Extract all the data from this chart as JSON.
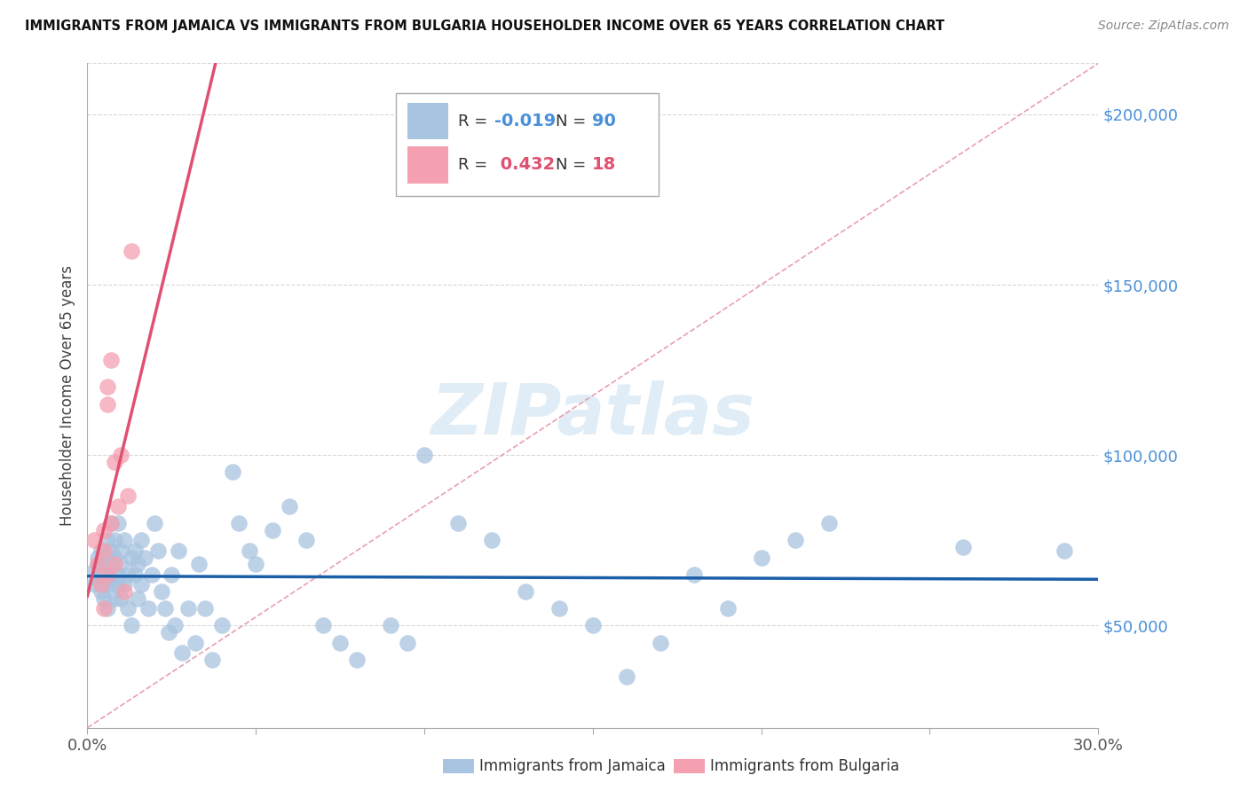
{
  "title": "IMMIGRANTS FROM JAMAICA VS IMMIGRANTS FROM BULGARIA HOUSEHOLDER INCOME OVER 65 YEARS CORRELATION CHART",
  "source": "Source: ZipAtlas.com",
  "ylabel": "Householder Income Over 65 years",
  "xlim": [
    0.0,
    0.3
  ],
  "ylim": [
    20000,
    215000
  ],
  "yticks_right": [
    50000,
    100000,
    150000,
    200000
  ],
  "ytick_labels_right": [
    "$50,000",
    "$100,000",
    "$150,000",
    "$200,000"
  ],
  "jamaica_color": "#a8c4e0",
  "bulgaria_color": "#f4a0b0",
  "jamaica_label": "Immigrants from Jamaica",
  "bulgaria_label": "Immigrants from Bulgaria",
  "jamaica_R": "-0.019",
  "jamaica_N": "90",
  "bulgaria_R": "0.432",
  "bulgaria_N": "18",
  "jamaica_line_color": "#1a5fa8",
  "bulgaria_line_color": "#e05070",
  "diagonal_line_color": "#e8a0b0",
  "watermark": "ZIPatlas",
  "background_color": "#ffffff",
  "grid_color": "#d8d8d8",
  "jamaica_x": [
    0.002,
    0.002,
    0.003,
    0.003,
    0.003,
    0.004,
    0.004,
    0.004,
    0.004,
    0.005,
    0.005,
    0.005,
    0.005,
    0.005,
    0.006,
    0.006,
    0.006,
    0.006,
    0.006,
    0.007,
    0.007,
    0.007,
    0.007,
    0.008,
    0.008,
    0.008,
    0.008,
    0.009,
    0.009,
    0.009,
    0.01,
    0.01,
    0.01,
    0.011,
    0.011,
    0.012,
    0.012,
    0.013,
    0.013,
    0.014,
    0.014,
    0.015,
    0.015,
    0.016,
    0.016,
    0.017,
    0.018,
    0.019,
    0.02,
    0.021,
    0.022,
    0.023,
    0.024,
    0.025,
    0.026,
    0.027,
    0.028,
    0.03,
    0.032,
    0.033,
    0.035,
    0.037,
    0.04,
    0.043,
    0.045,
    0.048,
    0.05,
    0.055,
    0.06,
    0.065,
    0.07,
    0.075,
    0.08,
    0.09,
    0.095,
    0.1,
    0.11,
    0.12,
    0.13,
    0.14,
    0.15,
    0.16,
    0.17,
    0.18,
    0.19,
    0.2,
    0.21,
    0.22,
    0.26,
    0.29
  ],
  "jamaica_y": [
    66000,
    62000,
    70000,
    64000,
    68000,
    72000,
    65000,
    60000,
    67000,
    66000,
    64000,
    68000,
    62000,
    58000,
    75000,
    70000,
    65000,
    62000,
    55000,
    80000,
    72000,
    68000,
    65000,
    75000,
    62000,
    70000,
    58000,
    80000,
    65000,
    62000,
    72000,
    68000,
    58000,
    75000,
    62000,
    65000,
    55000,
    70000,
    50000,
    65000,
    72000,
    68000,
    58000,
    62000,
    75000,
    70000,
    55000,
    65000,
    80000,
    72000,
    60000,
    55000,
    48000,
    65000,
    50000,
    72000,
    42000,
    55000,
    45000,
    68000,
    55000,
    40000,
    50000,
    95000,
    80000,
    72000,
    68000,
    78000,
    85000,
    75000,
    50000,
    45000,
    40000,
    50000,
    45000,
    100000,
    80000,
    75000,
    60000,
    55000,
    50000,
    35000,
    45000,
    65000,
    55000,
    70000,
    75000,
    80000,
    73000,
    72000
  ],
  "bulgaria_x": [
    0.002,
    0.003,
    0.004,
    0.005,
    0.005,
    0.005,
    0.006,
    0.006,
    0.006,
    0.007,
    0.007,
    0.008,
    0.008,
    0.009,
    0.01,
    0.011,
    0.012,
    0.013
  ],
  "bulgaria_y": [
    75000,
    68000,
    62000,
    78000,
    72000,
    55000,
    120000,
    115000,
    65000,
    128000,
    80000,
    98000,
    68000,
    85000,
    100000,
    60000,
    88000,
    160000
  ]
}
